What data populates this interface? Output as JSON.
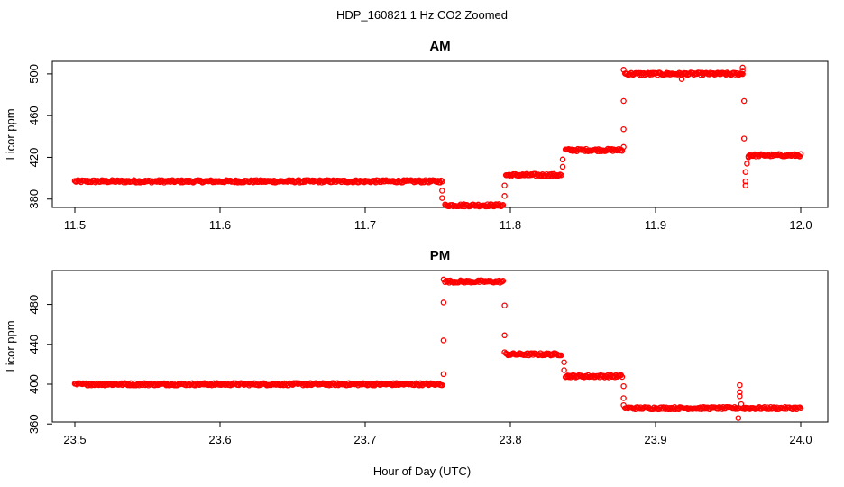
{
  "figure": {
    "title": "HDP_160821  1 Hz CO2 Zoomed",
    "xlabel": "Hour of Day (UTC)"
  },
  "chart_data": [
    {
      "type": "scatter",
      "title": "AM",
      "ylabel": "Licor ppm",
      "xlim": [
        11.5,
        12.0
      ],
      "ylim": [
        372,
        512
      ],
      "xticks": [
        "11.5",
        "11.6",
        "11.7",
        "11.8",
        "11.9",
        "12.0"
      ],
      "yticks": [
        "380",
        "420",
        "460",
        "500"
      ],
      "marker_color": "#ff0000",
      "segments": [
        {
          "x_start": 11.5,
          "x_end": 11.753,
          "y": 397
        },
        {
          "x_start": 11.755,
          "x_end": 11.795,
          "y": 374
        },
        {
          "x_start": 11.797,
          "x_end": 11.835,
          "y": 403
        },
        {
          "x_start": 11.838,
          "x_end": 11.877,
          "y": 427
        },
        {
          "x_start": 11.879,
          "x_end": 11.96,
          "y": 500
        },
        {
          "x_start": 11.964,
          "x_end": 12.0,
          "y": 422
        }
      ],
      "transition_points": [
        {
          "x": 11.753,
          "y": 388
        },
        {
          "x": 11.753,
          "y": 381
        },
        {
          "x": 11.796,
          "y": 393
        },
        {
          "x": 11.796,
          "y": 383
        },
        {
          "x": 11.836,
          "y": 411
        },
        {
          "x": 11.836,
          "y": 418
        },
        {
          "x": 11.878,
          "y": 430
        },
        {
          "x": 11.878,
          "y": 447
        },
        {
          "x": 11.878,
          "y": 474
        },
        {
          "x": 11.878,
          "y": 504
        },
        {
          "x": 11.961,
          "y": 474
        },
        {
          "x": 11.961,
          "y": 438
        },
        {
          "x": 11.962,
          "y": 406
        },
        {
          "x": 11.962,
          "y": 397
        },
        {
          "x": 11.962,
          "y": 393
        },
        {
          "x": 11.963,
          "y": 414
        },
        {
          "x": 11.964,
          "y": 420
        },
        {
          "x": 11.96,
          "y": 506
        },
        {
          "x": 11.96,
          "y": 503
        },
        {
          "x": 11.918,
          "y": 495
        }
      ]
    },
    {
      "type": "scatter",
      "title": "PM",
      "ylabel": "Licor ppm",
      "xlim": [
        23.5,
        24.0
      ],
      "ylim": [
        362,
        514
      ],
      "xticks": [
        "23.5",
        "23.6",
        "23.7",
        "23.8",
        "23.9",
        "24.0"
      ],
      "yticks": [
        "360",
        "400",
        "440",
        "480"
      ],
      "marker_color": "#ff0000",
      "segments": [
        {
          "x_start": 23.5,
          "x_end": 23.753,
          "y": 400
        },
        {
          "x_start": 23.755,
          "x_end": 23.795,
          "y": 503
        },
        {
          "x_start": 23.797,
          "x_end": 23.835,
          "y": 430
        },
        {
          "x_start": 23.838,
          "x_end": 23.877,
          "y": 408
        },
        {
          "x_start": 23.879,
          "x_end": 23.958,
          "y": 376
        },
        {
          "x_start": 23.96,
          "x_end": 24.0,
          "y": 376
        }
      ],
      "transition_points": [
        {
          "x": 23.754,
          "y": 410
        },
        {
          "x": 23.754,
          "y": 444
        },
        {
          "x": 23.754,
          "y": 482
        },
        {
          "x": 23.754,
          "y": 505
        },
        {
          "x": 23.796,
          "y": 479
        },
        {
          "x": 23.796,
          "y": 449
        },
        {
          "x": 23.796,
          "y": 432
        },
        {
          "x": 23.837,
          "y": 422
        },
        {
          "x": 23.837,
          "y": 414
        },
        {
          "x": 23.878,
          "y": 398
        },
        {
          "x": 23.878,
          "y": 386
        },
        {
          "x": 23.878,
          "y": 379
        },
        {
          "x": 23.958,
          "y": 399
        },
        {
          "x": 23.958,
          "y": 392
        },
        {
          "x": 23.958,
          "y": 388
        },
        {
          "x": 23.959,
          "y": 380
        },
        {
          "x": 23.957,
          "y": 366
        }
      ]
    }
  ]
}
